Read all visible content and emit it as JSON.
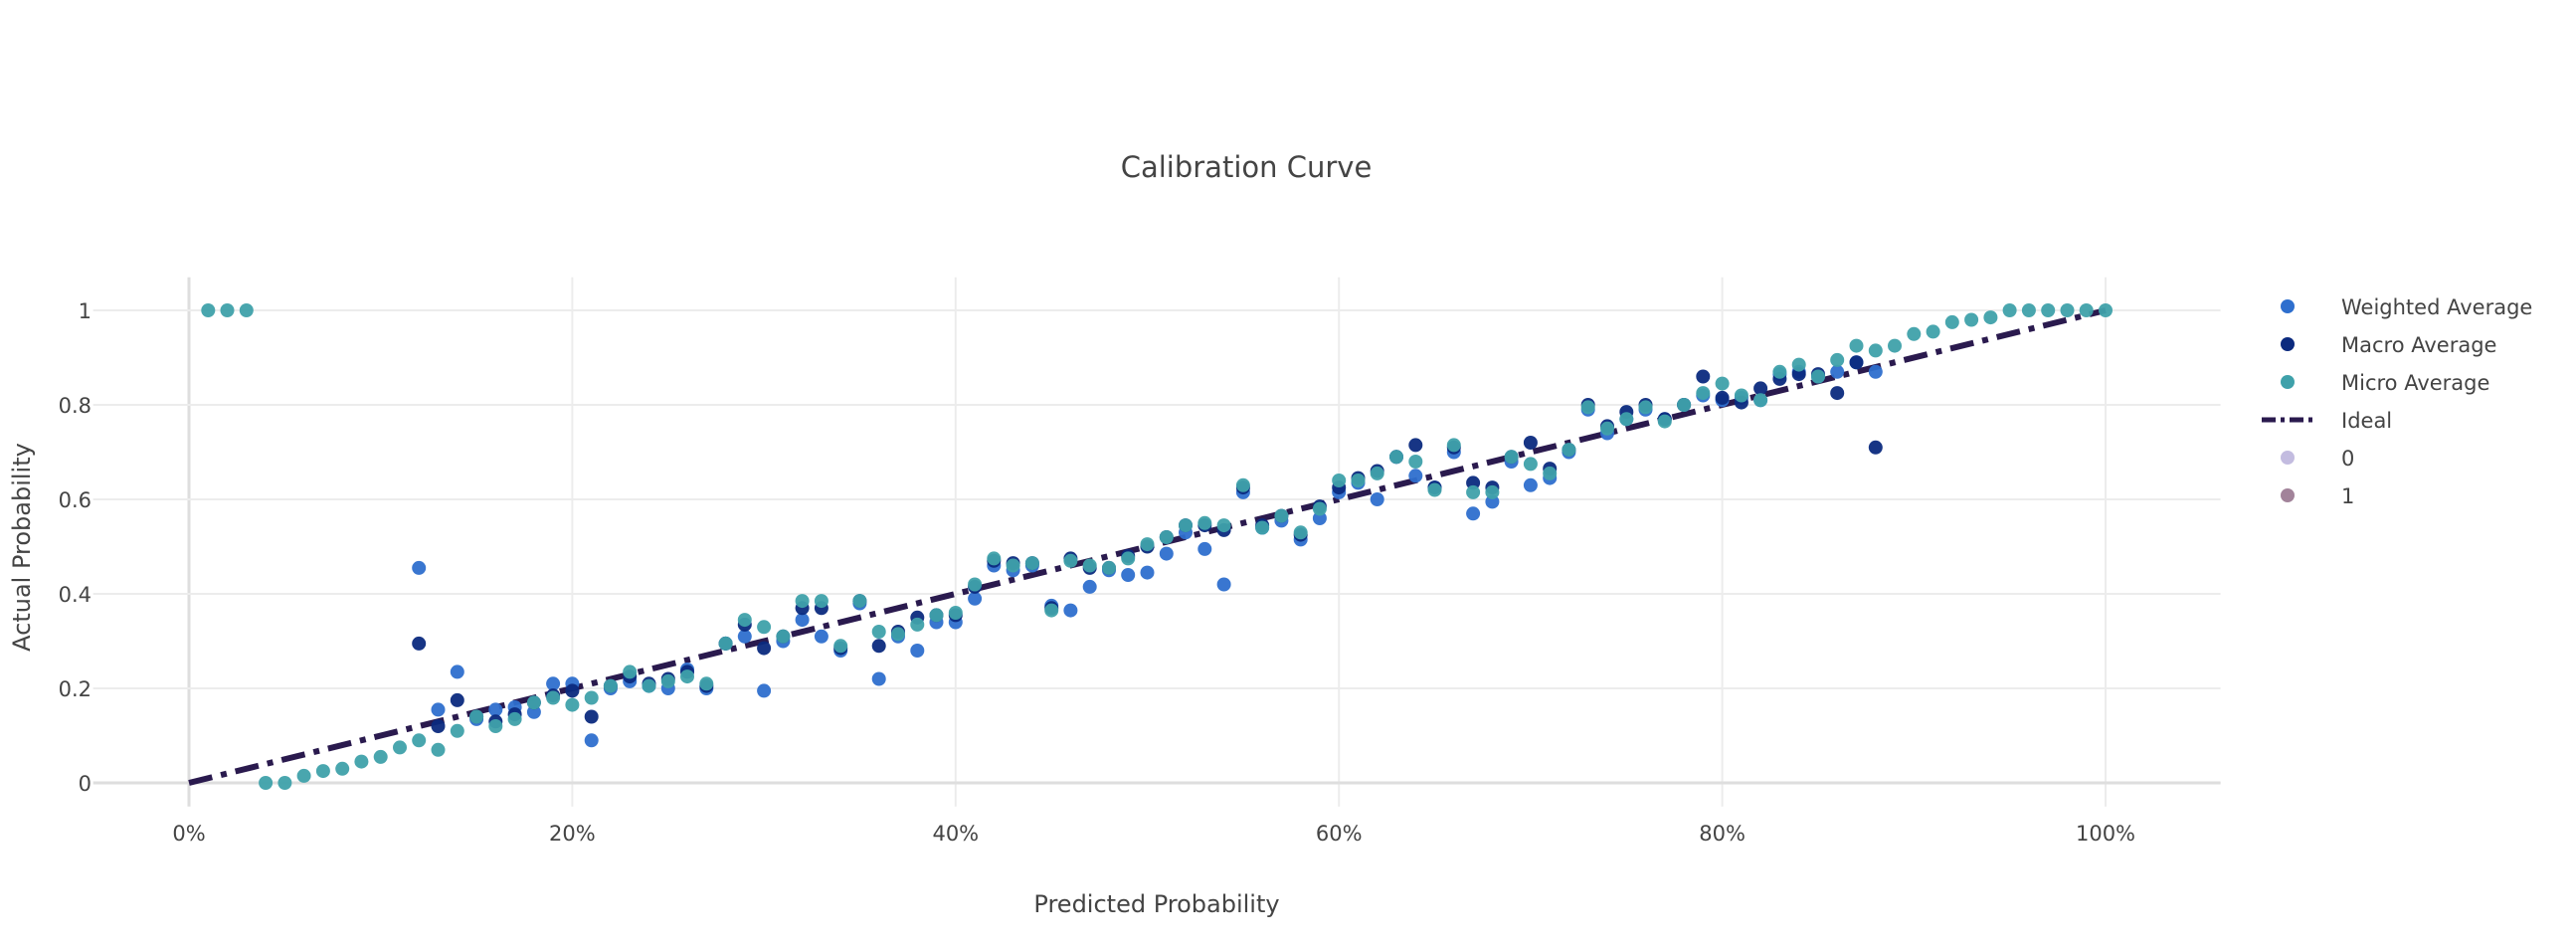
{
  "chart_data": {
    "type": "scatter",
    "title": "Calibration Curve",
    "xlabel": "Predicted Probability",
    "ylabel": "Actual Probability",
    "xlim": [
      -0.05,
      1.06
    ],
    "ylim": [
      -0.05,
      1.07
    ],
    "x_tick_values": [
      0,
      0.2,
      0.4,
      0.6,
      0.8,
      1.0
    ],
    "x_tick_labels": [
      "0%",
      "20%",
      "40%",
      "60%",
      "80%",
      "100%"
    ],
    "y_tick_values": [
      0,
      0.2,
      0.4,
      0.6,
      0.8,
      1
    ],
    "y_tick_labels": [
      "0",
      "0.2",
      "0.4",
      "0.6",
      "0.8",
      "1"
    ],
    "grid": true,
    "legend_position": "right",
    "series": [
      {
        "name": "Weighted Average",
        "color": "#2e6fce",
        "kind": "markers",
        "points": [
          [
            0.12,
            0.455
          ],
          [
            0.13,
            0.155
          ],
          [
            0.14,
            0.235
          ],
          [
            0.15,
            0.135
          ],
          [
            0.16,
            0.155
          ],
          [
            0.17,
            0.16
          ],
          [
            0.18,
            0.15
          ],
          [
            0.19,
            0.21
          ],
          [
            0.2,
            0.21
          ],
          [
            0.21,
            0.09
          ],
          [
            0.22,
            0.2
          ],
          [
            0.23,
            0.215
          ],
          [
            0.24,
            0.205
          ],
          [
            0.25,
            0.2
          ],
          [
            0.26,
            0.24
          ],
          [
            0.27,
            0.2
          ],
          [
            0.28,
            0.295
          ],
          [
            0.29,
            0.31
          ],
          [
            0.3,
            0.195
          ],
          [
            0.31,
            0.3
          ],
          [
            0.32,
            0.345
          ],
          [
            0.33,
            0.31
          ],
          [
            0.34,
            0.28
          ],
          [
            0.35,
            0.38
          ],
          [
            0.36,
            0.22
          ],
          [
            0.37,
            0.31
          ],
          [
            0.38,
            0.28
          ],
          [
            0.39,
            0.34
          ],
          [
            0.4,
            0.34
          ],
          [
            0.41,
            0.39
          ],
          [
            0.42,
            0.46
          ],
          [
            0.43,
            0.45
          ],
          [
            0.44,
            0.46
          ],
          [
            0.45,
            0.375
          ],
          [
            0.46,
            0.365
          ],
          [
            0.47,
            0.415
          ],
          [
            0.48,
            0.45
          ],
          [
            0.49,
            0.44
          ],
          [
            0.5,
            0.445
          ],
          [
            0.51,
            0.485
          ],
          [
            0.52,
            0.53
          ],
          [
            0.53,
            0.495
          ],
          [
            0.54,
            0.42
          ],
          [
            0.55,
            0.615
          ],
          [
            0.56,
            0.54
          ],
          [
            0.57,
            0.555
          ],
          [
            0.58,
            0.515
          ],
          [
            0.59,
            0.56
          ],
          [
            0.6,
            0.615
          ],
          [
            0.61,
            0.635
          ],
          [
            0.62,
            0.6
          ],
          [
            0.63,
            0.69
          ],
          [
            0.64,
            0.65
          ],
          [
            0.65,
            0.625
          ],
          [
            0.66,
            0.7
          ],
          [
            0.67,
            0.57
          ],
          [
            0.68,
            0.595
          ],
          [
            0.69,
            0.68
          ],
          [
            0.7,
            0.63
          ],
          [
            0.71,
            0.645
          ],
          [
            0.72,
            0.7
          ],
          [
            0.73,
            0.79
          ],
          [
            0.74,
            0.74
          ],
          [
            0.75,
            0.77
          ],
          [
            0.76,
            0.79
          ],
          [
            0.77,
            0.77
          ],
          [
            0.78,
            0.8
          ],
          [
            0.79,
            0.82
          ],
          [
            0.8,
            0.81
          ],
          [
            0.81,
            0.815
          ],
          [
            0.82,
            0.81
          ],
          [
            0.83,
            0.865
          ],
          [
            0.84,
            0.87
          ],
          [
            0.85,
            0.86
          ],
          [
            0.86,
            0.87
          ],
          [
            0.87,
            0.89
          ],
          [
            0.88,
            0.87
          ]
        ]
      },
      {
        "name": "Macro Average",
        "color": "#0b2a7e",
        "kind": "markers",
        "points": [
          [
            0.12,
            0.295
          ],
          [
            0.13,
            0.12
          ],
          [
            0.14,
            0.175
          ],
          [
            0.15,
            0.14
          ],
          [
            0.16,
            0.13
          ],
          [
            0.17,
            0.145
          ],
          [
            0.18,
            0.17
          ],
          [
            0.19,
            0.185
          ],
          [
            0.2,
            0.195
          ],
          [
            0.21,
            0.14
          ],
          [
            0.22,
            0.205
          ],
          [
            0.23,
            0.225
          ],
          [
            0.24,
            0.21
          ],
          [
            0.25,
            0.22
          ],
          [
            0.26,
            0.235
          ],
          [
            0.27,
            0.205
          ],
          [
            0.28,
            0.295
          ],
          [
            0.29,
            0.335
          ],
          [
            0.3,
            0.285
          ],
          [
            0.31,
            0.31
          ],
          [
            0.32,
            0.37
          ],
          [
            0.33,
            0.37
          ],
          [
            0.34,
            0.285
          ],
          [
            0.35,
            0.385
          ],
          [
            0.36,
            0.29
          ],
          [
            0.37,
            0.32
          ],
          [
            0.38,
            0.35
          ],
          [
            0.39,
            0.355
          ],
          [
            0.4,
            0.355
          ],
          [
            0.41,
            0.415
          ],
          [
            0.42,
            0.47
          ],
          [
            0.43,
            0.465
          ],
          [
            0.44,
            0.465
          ],
          [
            0.45,
            0.37
          ],
          [
            0.46,
            0.475
          ],
          [
            0.47,
            0.455
          ],
          [
            0.48,
            0.455
          ],
          [
            0.49,
            0.48
          ],
          [
            0.5,
            0.5
          ],
          [
            0.51,
            0.52
          ],
          [
            0.52,
            0.545
          ],
          [
            0.53,
            0.545
          ],
          [
            0.54,
            0.535
          ],
          [
            0.55,
            0.625
          ],
          [
            0.56,
            0.545
          ],
          [
            0.57,
            0.565
          ],
          [
            0.58,
            0.525
          ],
          [
            0.59,
            0.585
          ],
          [
            0.6,
            0.625
          ],
          [
            0.61,
            0.645
          ],
          [
            0.62,
            0.66
          ],
          [
            0.63,
            0.69
          ],
          [
            0.64,
            0.715
          ],
          [
            0.65,
            0.625
          ],
          [
            0.66,
            0.71
          ],
          [
            0.67,
            0.635
          ],
          [
            0.68,
            0.625
          ],
          [
            0.69,
            0.69
          ],
          [
            0.7,
            0.72
          ],
          [
            0.71,
            0.665
          ],
          [
            0.72,
            0.705
          ],
          [
            0.73,
            0.8
          ],
          [
            0.74,
            0.755
          ],
          [
            0.75,
            0.785
          ],
          [
            0.76,
            0.8
          ],
          [
            0.77,
            0.77
          ],
          [
            0.78,
            0.8
          ],
          [
            0.79,
            0.86
          ],
          [
            0.8,
            0.815
          ],
          [
            0.81,
            0.805
          ],
          [
            0.82,
            0.835
          ],
          [
            0.83,
            0.855
          ],
          [
            0.84,
            0.865
          ],
          [
            0.85,
            0.865
          ],
          [
            0.86,
            0.825
          ],
          [
            0.87,
            0.89
          ],
          [
            0.88,
            0.71
          ]
        ]
      },
      {
        "name": "Micro Average",
        "color": "#3fa1aa",
        "kind": "markers",
        "points": [
          [
            0.01,
            1
          ],
          [
            0.02,
            1
          ],
          [
            0.03,
            1
          ],
          [
            0.04,
            0
          ],
          [
            0.05,
            0
          ],
          [
            0.06,
            0.015
          ],
          [
            0.07,
            0.025
          ],
          [
            0.08,
            0.03
          ],
          [
            0.09,
            0.045
          ],
          [
            0.1,
            0.055
          ],
          [
            0.11,
            0.075
          ],
          [
            0.12,
            0.09
          ],
          [
            0.13,
            0.07
          ],
          [
            0.14,
            0.11
          ],
          [
            0.15,
            0.14
          ],
          [
            0.16,
            0.12
          ],
          [
            0.17,
            0.135
          ],
          [
            0.18,
            0.17
          ],
          [
            0.19,
            0.18
          ],
          [
            0.2,
            0.165
          ],
          [
            0.21,
            0.18
          ],
          [
            0.22,
            0.205
          ],
          [
            0.23,
            0.235
          ],
          [
            0.24,
            0.205
          ],
          [
            0.25,
            0.215
          ],
          [
            0.26,
            0.225
          ],
          [
            0.27,
            0.21
          ],
          [
            0.28,
            0.295
          ],
          [
            0.29,
            0.345
          ],
          [
            0.3,
            0.33
          ],
          [
            0.31,
            0.31
          ],
          [
            0.32,
            0.385
          ],
          [
            0.33,
            0.385
          ],
          [
            0.34,
            0.29
          ],
          [
            0.35,
            0.385
          ],
          [
            0.36,
            0.32
          ],
          [
            0.37,
            0.315
          ],
          [
            0.38,
            0.335
          ],
          [
            0.39,
            0.355
          ],
          [
            0.4,
            0.36
          ],
          [
            0.41,
            0.42
          ],
          [
            0.42,
            0.475
          ],
          [
            0.43,
            0.46
          ],
          [
            0.44,
            0.465
          ],
          [
            0.45,
            0.365
          ],
          [
            0.46,
            0.47
          ],
          [
            0.47,
            0.46
          ],
          [
            0.48,
            0.455
          ],
          [
            0.49,
            0.475
          ],
          [
            0.5,
            0.505
          ],
          [
            0.51,
            0.52
          ],
          [
            0.52,
            0.545
          ],
          [
            0.53,
            0.55
          ],
          [
            0.54,
            0.545
          ],
          [
            0.55,
            0.63
          ],
          [
            0.56,
            0.54
          ],
          [
            0.57,
            0.565
          ],
          [
            0.58,
            0.53
          ],
          [
            0.59,
            0.58
          ],
          [
            0.6,
            0.64
          ],
          [
            0.61,
            0.64
          ],
          [
            0.62,
            0.655
          ],
          [
            0.63,
            0.69
          ],
          [
            0.64,
            0.68
          ],
          [
            0.65,
            0.62
          ],
          [
            0.66,
            0.715
          ],
          [
            0.67,
            0.615
          ],
          [
            0.68,
            0.615
          ],
          [
            0.69,
            0.69
          ],
          [
            0.7,
            0.675
          ],
          [
            0.71,
            0.655
          ],
          [
            0.72,
            0.705
          ],
          [
            0.73,
            0.795
          ],
          [
            0.74,
            0.75
          ],
          [
            0.75,
            0.77
          ],
          [
            0.76,
            0.795
          ],
          [
            0.77,
            0.765
          ],
          [
            0.78,
            0.8
          ],
          [
            0.79,
            0.825
          ],
          [
            0.8,
            0.845
          ],
          [
            0.81,
            0.82
          ],
          [
            0.82,
            0.81
          ],
          [
            0.83,
            0.87
          ],
          [
            0.84,
            0.885
          ],
          [
            0.85,
            0.86
          ],
          [
            0.86,
            0.895
          ],
          [
            0.87,
            0.925
          ],
          [
            0.88,
            0.915
          ],
          [
            0.89,
            0.925
          ],
          [
            0.9,
            0.95
          ],
          [
            0.91,
            0.955
          ],
          [
            0.92,
            0.975
          ],
          [
            0.93,
            0.98
          ],
          [
            0.94,
            0.985
          ],
          [
            0.95,
            1
          ],
          [
            0.96,
            1
          ],
          [
            0.97,
            1
          ],
          [
            0.98,
            1
          ],
          [
            0.99,
            1
          ],
          [
            1.0,
            1
          ]
        ]
      },
      {
        "name": "Ideal",
        "color": "#2a1a4e",
        "kind": "line",
        "dash": "dashdot",
        "points": [
          [
            0,
            0
          ],
          [
            1,
            1
          ]
        ]
      },
      {
        "name": "0",
        "color": "#c3bce0",
        "kind": "legend-only",
        "points": []
      },
      {
        "name": "1",
        "color": "#a2839a",
        "kind": "legend-only",
        "points": []
      }
    ]
  }
}
